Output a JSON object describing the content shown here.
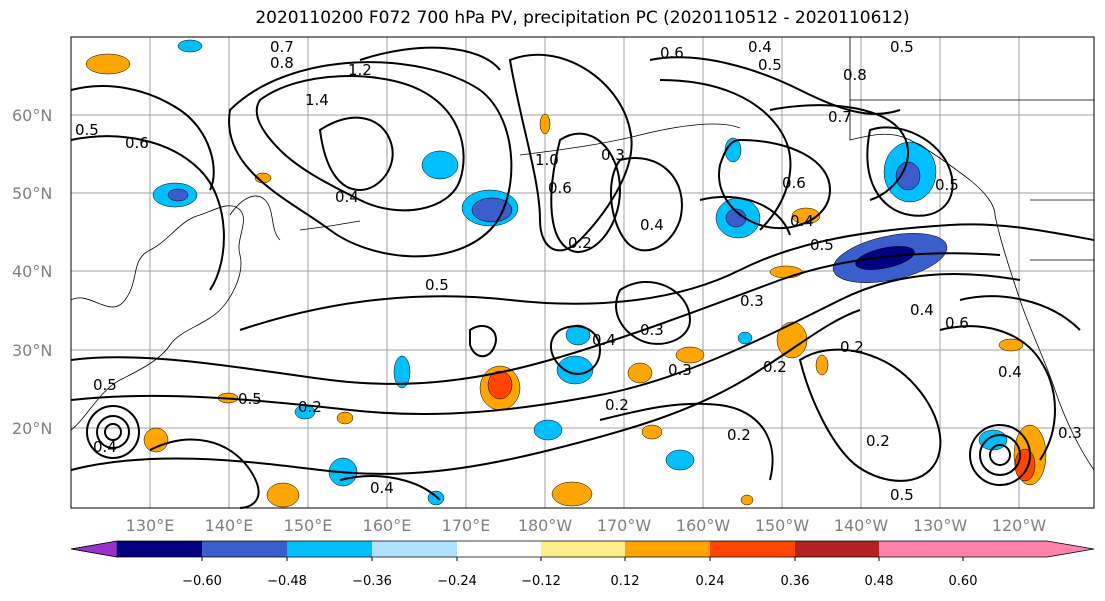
{
  "title": "2020110200 F072 700 hPa PV, precipitation PC (2020110512 - 2020110612)",
  "lat_labels": [
    "60°N",
    "50°N",
    "40°N",
    "30°N",
    "20°N"
  ],
  "lon_labels": [
    "130°E",
    "140°E",
    "150°E",
    "160°E",
    "170°E",
    "180°W",
    "170°W",
    "160°W",
    "150°W",
    "140°W",
    "130°W",
    "120°W"
  ],
  "colorbar": {
    "colors": [
      "#9932cc",
      "#000080",
      "#3a5fcd",
      "#00bfff",
      "#b0e2ff",
      "#ffffff",
      "#ffec8b",
      "#ffa500",
      "#ff4500",
      "#b22222",
      "#ff82ab"
    ],
    "ticks": [
      "−0.60",
      "−0.48",
      "−0.36",
      "−0.24",
      "−0.12",
      "0.12",
      "0.24",
      "0.36",
      "0.48",
      "0.60"
    ]
  },
  "contour_labels": [
    "0.7",
    "0.8",
    "1.2",
    "1.4",
    "0.6",
    "0.4",
    "0.5",
    "0.8",
    "0.7",
    "0.5",
    "0.6",
    "0.5",
    "1.0",
    "0.3",
    "0.6",
    "0.2",
    "0.4",
    "0.4",
    "0.5",
    "0.6",
    "0.5",
    "0.4",
    "0.5",
    "0.3",
    "0.4",
    "0.6",
    "0.4",
    "0.3",
    "0.2",
    "0.3",
    "0.2",
    "0.4",
    "0.5",
    "0.2",
    "0.2",
    "0.2",
    "0.2",
    "0.3",
    "0.4",
    "0.5",
    "0.5",
    "0.4"
  ]
}
